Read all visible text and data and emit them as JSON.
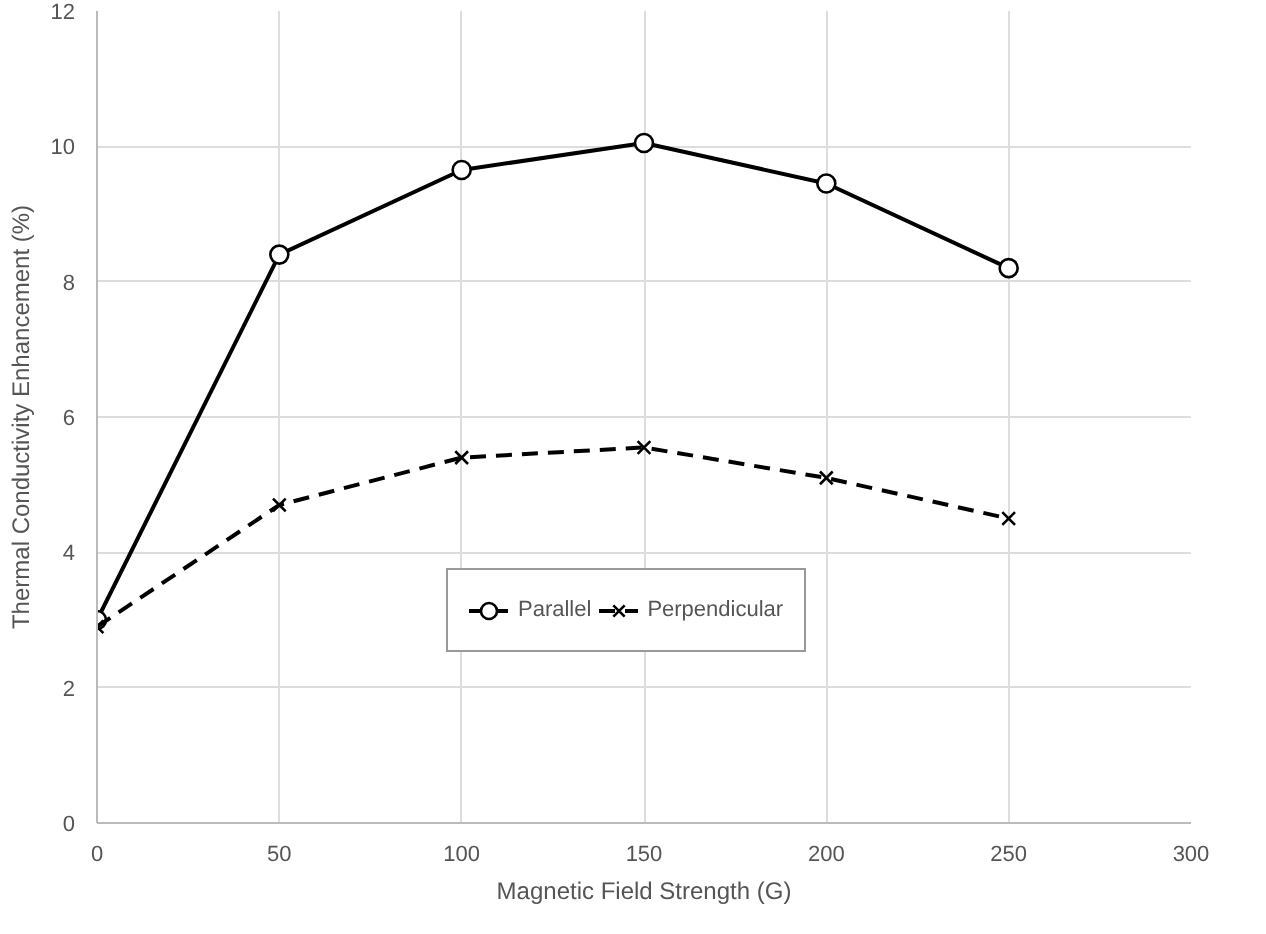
{
  "chart_data": {
    "type": "line",
    "xlabel": "Magnetic Field Strength (G)",
    "ylabel": "Thermal Conductivity Enhancement (%)",
    "x": [
      0,
      50,
      100,
      150,
      200,
      250
    ],
    "series": [
      {
        "name": "Parallel",
        "color": "#000000",
        "values": [
          3.0,
          8.4,
          9.65,
          10.05,
          9.45,
          8.2
        ],
        "marker": "circle",
        "line_style": "solid"
      },
      {
        "name": "Perpendicular",
        "color": "#000000",
        "values": [
          2.9,
          4.7,
          5.4,
          5.55,
          5.1,
          4.5
        ],
        "marker": "cross",
        "line_style": "dashed"
      }
    ],
    "xlim": [
      0,
      300
    ],
    "xticks": [
      0,
      50,
      100,
      150,
      200,
      250,
      300
    ],
    "ylim": [
      0,
      12
    ],
    "yticks": [
      0,
      2,
      4,
      6,
      8,
      10,
      12
    ],
    "grid": true,
    "legend": "bottom"
  }
}
